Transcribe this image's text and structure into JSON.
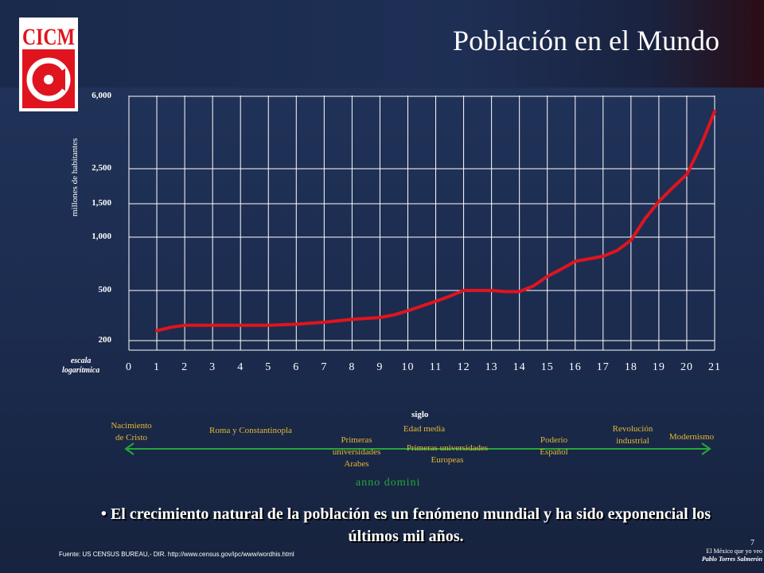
{
  "slide": {
    "title": "Población en el Mundo",
    "page_number": "7",
    "footer_source": "Fuente: US CENSUS BUREAU,- DIR. http://www.census.gov/ipc/www/wordhis.html",
    "footer_right_1": "El México que yo veo",
    "footer_right_2": "Pablo Torres Salmerón",
    "bullet": "El crecimiento natural de la población es un fenómeno mundial y  ha sido exponencial los últimos mil años.",
    "anno_domini": "anno  domini",
    "colors": {
      "curve": "#e0141e",
      "grid": "#ffffff",
      "events": "#e6b830",
      "timeline": "#27a53a",
      "logo_red": "#e0141e"
    }
  },
  "logo": {
    "text": "CICM",
    "icon": "cicm-logo-icon"
  },
  "chart_data": {
    "type": "line",
    "title": "",
    "ylabel": "millones de habitantes",
    "xlabel": "siglo",
    "scale_note_1": "escala",
    "scale_note_2": "logarítmica",
    "ytick_labels": [
      "200",
      "500",
      "1,000",
      "1,500",
      "2,500",
      "6,000"
    ],
    "ytick_values": [
      200,
      500,
      1000,
      1500,
      2500,
      6000
    ],
    "xtick_labels": [
      "0",
      "1",
      "2",
      "3",
      "4",
      "5",
      "6",
      "7",
      "8",
      "9",
      "10",
      "11",
      "12",
      "13",
      "14",
      "15",
      "16",
      "17",
      "18",
      "19",
      "20",
      "21"
    ],
    "grid": true,
    "series": [
      {
        "x": [
          1,
          1.5,
          2,
          3,
          4,
          5,
          6,
          7,
          8,
          8.5,
          9,
          9.5,
          10,
          11,
          11.5,
          12,
          12.5,
          13,
          13.5,
          14,
          14.5,
          15,
          15.5,
          16,
          17,
          17.5,
          18,
          18.5,
          19,
          19.5,
          20,
          20.5,
          21
        ],
        "y": [
          240,
          255,
          265,
          265,
          265,
          265,
          270,
          280,
          295,
          300,
          305,
          320,
          345,
          410,
          450,
          500,
          500,
          500,
          490,
          490,
          530,
          600,
          660,
          730,
          780,
          840,
          960,
          1250,
          1550,
          1900,
          2300,
          3300,
          5000
        ]
      }
    ]
  },
  "timeline": {
    "events": [
      {
        "line1": "Nacimiento",
        "line2": "de Cristo"
      },
      {
        "line1": "Roma y Constantinopla",
        "line2": ""
      },
      {
        "line1": "Primeras",
        "line2": "universidades",
        "line3": "Arabes"
      },
      {
        "line1": "Edad media",
        "line2": ""
      },
      {
        "line1": "Primeras universidades",
        "line2": "Europeas"
      },
      {
        "line1": "Poderio",
        "line2": "Español"
      },
      {
        "line1": "Revolución",
        "line2": "industrial"
      },
      {
        "line1": "Modernismo",
        "line2": ""
      }
    ]
  }
}
